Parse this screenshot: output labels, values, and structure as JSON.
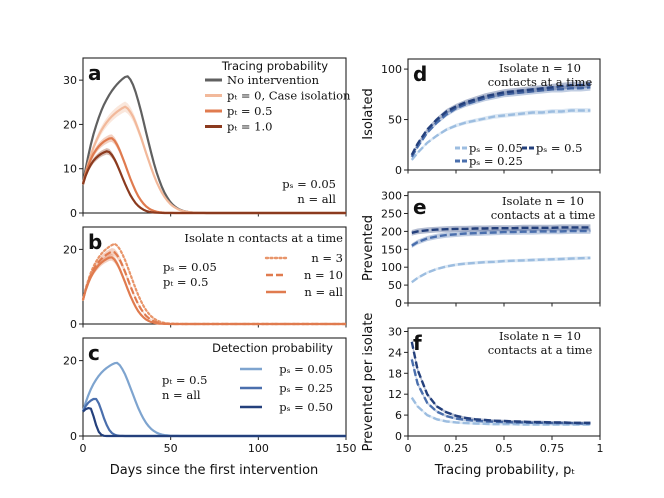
{
  "chart_data": [
    {
      "id": "a",
      "type": "line",
      "panel_label": "a",
      "xlim": [
        0,
        150
      ],
      "ylim": [
        0,
        35
      ],
      "yticks": [
        "0",
        "10",
        "20",
        "30"
      ],
      "xticks_shown": false,
      "legend_title": "Tracing probability",
      "annotation": [
        "pₛ = 0.05",
        "n = all"
      ],
      "series": [
        {
          "name": "No intervention",
          "color": "#606060",
          "style": "solid",
          "band": false,
          "peak_day": 25,
          "peak": 31,
          "y0": 6.5,
          "rise_k": 2.2,
          "decay_k": 2.2
        },
        {
          "name": "pₜ = 0, Case isolation",
          "color": "#f2b99b",
          "style": "solid",
          "band": true,
          "peak_day": 24,
          "peak": 24,
          "y0": 6.5,
          "rise_k": 2.2,
          "decay_k": 2.0
        },
        {
          "name": "pₜ = 0.5",
          "color": "#e07b4f",
          "style": "solid",
          "band": true,
          "peak_day": 16,
          "peak": 17,
          "y0": 6.5,
          "rise_k": 2.4,
          "decay_k": 1.7
        },
        {
          "name": "pₜ = 1.0",
          "color": "#8b3a1e",
          "style": "solid",
          "band": true,
          "peak_day": 14,
          "peak": 14,
          "y0": 6.5,
          "rise_k": 2.4,
          "decay_k": 1.6
        }
      ]
    },
    {
      "id": "b",
      "type": "line",
      "panel_label": "b",
      "xlim": [
        0,
        150
      ],
      "ylim": [
        0,
        26
      ],
      "yticks": [
        "0",
        "20"
      ],
      "xticks_shown": false,
      "legend_title": "Isolate n contacts at a time",
      "annotation": [
        "pₛ = 0.05",
        "pₜ = 0.5"
      ],
      "series": [
        {
          "name": "n = 3",
          "color": "#e8956a",
          "style": "dotted",
          "band": false,
          "peak_day": 18,
          "peak": 21.5,
          "y0": 6.5,
          "rise_k": 2.3,
          "decay_k": 1.8
        },
        {
          "name": "n = 10",
          "color": "#e07b4f",
          "style": "dashed",
          "band": true,
          "peak_day": 17,
          "peak": 19.5,
          "y0": 6.5,
          "rise_k": 2.3,
          "decay_k": 1.8
        },
        {
          "name": "n = all",
          "color": "#e07b4f",
          "style": "solid",
          "band": true,
          "peak_day": 16,
          "peak": 18,
          "y0": 6.5,
          "rise_k": 2.3,
          "decay_k": 1.8
        }
      ]
    },
    {
      "id": "c",
      "type": "line",
      "panel_label": "c",
      "xlim": [
        0,
        150
      ],
      "ylim": [
        0,
        26
      ],
      "yticks": [
        "0",
        "20"
      ],
      "xticks": [
        "0",
        "50",
        "100",
        "150"
      ],
      "xlabel": "Days since the first intervention",
      "legend_title": "Detection probability",
      "annotation": [
        "pₜ = 0.5",
        "n = all"
      ],
      "series": [
        {
          "name": "pₛ = 0.05",
          "color": "#7ea4cf",
          "style": "solid",
          "band": false,
          "peak_day": 19,
          "peak": 19.5,
          "y0": 6.5,
          "rise_k": 2.2,
          "decay_k": 2.0
        },
        {
          "name": "pₛ = 0.25",
          "color": "#4a6fad",
          "style": "solid",
          "band": false,
          "peak_day": 7,
          "peak": 10,
          "y0": 6.5,
          "rise_k": 2.0,
          "decay_k": 1.6
        },
        {
          "name": "pₛ = 0.50",
          "color": "#24407c",
          "style": "solid",
          "band": false,
          "peak_day": 4,
          "peak": 7.5,
          "y0": 6.5,
          "rise_k": 2.0,
          "decay_k": 1.5
        }
      ]
    },
    {
      "id": "d",
      "type": "line",
      "panel_label": "d",
      "ylabel": "Isolated",
      "xlim": [
        0,
        1
      ],
      "ylim": [
        0,
        110
      ],
      "yticks": [
        "0",
        "50",
        "100"
      ],
      "xticks_shown": false,
      "title": [
        "Isolate n = 10",
        "contacts at a time"
      ],
      "legend": [
        "pₛ = 0.05",
        "pₛ = 0.25",
        "pₛ = 0.5"
      ],
      "x": [
        0.02,
        0.05,
        0.1,
        0.15,
        0.2,
        0.25,
        0.3,
        0.35,
        0.4,
        0.45,
        0.5,
        0.55,
        0.6,
        0.65,
        0.7,
        0.75,
        0.8,
        0.85,
        0.9,
        0.95
      ],
      "series": [
        {
          "name": "pₛ = 0.05",
          "color": "#9cbde0",
          "style": "dashed",
          "values": [
            10,
            17,
            27,
            34,
            40,
            44,
            47,
            49,
            51,
            53,
            54,
            55,
            56,
            57,
            57,
            58,
            58,
            59,
            59,
            59
          ]
        },
        {
          "name": "pₛ = 0.25",
          "color": "#4a6fad",
          "style": "dashed",
          "values": [
            13,
            23,
            37,
            47,
            55,
            61,
            65,
            68,
            71,
            73,
            75,
            76,
            77,
            78,
            79,
            80,
            80,
            81,
            81,
            82
          ]
        },
        {
          "name": "pₛ = 0.5",
          "color": "#24407c",
          "style": "dashed",
          "values": [
            15,
            26,
            40,
            50,
            58,
            63,
            67,
            70,
            73,
            75,
            77,
            78,
            79,
            80,
            81,
            82,
            83,
            84,
            84,
            85
          ]
        }
      ]
    },
    {
      "id": "e",
      "type": "line",
      "panel_label": "e",
      "ylabel": "Prevented",
      "xlim": [
        0,
        1
      ],
      "ylim": [
        0,
        310
      ],
      "yticks": [
        "0",
        "50",
        "100",
        "150",
        "200",
        "250",
        "300"
      ],
      "xticks_shown": false,
      "title": [
        "Isolate n = 10",
        "contacts at a time"
      ],
      "x": [
        0.02,
        0.05,
        0.1,
        0.15,
        0.2,
        0.25,
        0.3,
        0.35,
        0.4,
        0.45,
        0.5,
        0.55,
        0.6,
        0.65,
        0.7,
        0.75,
        0.8,
        0.85,
        0.9,
        0.95
      ],
      "series": [
        {
          "name": "pₛ = 0.05",
          "color": "#9cbde0",
          "style": "dashed",
          "values": [
            58,
            70,
            85,
            95,
            102,
            107,
            110,
            112,
            114,
            115,
            117,
            118,
            119,
            120,
            121,
            122,
            123,
            124,
            125,
            126
          ]
        },
        {
          "name": "pₛ = 0.25",
          "color": "#4a6fad",
          "style": "dashed",
          "values": [
            160,
            170,
            180,
            186,
            190,
            192,
            194,
            195,
            196,
            197,
            198,
            198,
            199,
            199,
            200,
            200,
            200,
            201,
            201,
            201
          ]
        },
        {
          "name": "pₛ = 0.5",
          "color": "#24407c",
          "style": "dashed",
          "values": [
            196,
            200,
            203,
            205,
            206,
            207,
            207,
            208,
            208,
            209,
            209,
            209,
            210,
            210,
            210,
            210,
            211,
            211,
            211,
            211
          ]
        }
      ]
    },
    {
      "id": "f",
      "type": "line",
      "panel_label": "f",
      "ylabel": "Prevented per isolate",
      "xlabel": "Tracing probability, pₜ",
      "xlim": [
        0,
        1
      ],
      "ylim": [
        0,
        31
      ],
      "yticks": [
        "0",
        "6",
        "12",
        "18",
        "24",
        "30"
      ],
      "xticks": [
        "0",
        "0.25",
        "0.5",
        "0.75",
        "1"
      ],
      "title": [
        "Isolate n = 10",
        "contacts at a time"
      ],
      "x": [
        0.02,
        0.05,
        0.1,
        0.15,
        0.2,
        0.25,
        0.3,
        0.35,
        0.4,
        0.45,
        0.5,
        0.55,
        0.6,
        0.65,
        0.7,
        0.75,
        0.8,
        0.85,
        0.9,
        0.95
      ],
      "series": [
        {
          "name": "pₛ = 0.05",
          "color": "#9cbde0",
          "style": "dashed",
          "values": [
            11,
            8.5,
            6,
            4.8,
            4.2,
            3.9,
            3.7,
            3.6,
            3.5,
            3.4,
            3.4,
            3.4,
            3.3,
            3.3,
            3.3,
            3.3,
            3.3,
            3.3,
            3.3,
            3.3
          ]
        },
        {
          "name": "pₛ = 0.25",
          "color": "#4a6fad",
          "style": "dashed",
          "values": [
            22,
            15,
            9.5,
            7,
            5.7,
            5,
            4.6,
            4.4,
            4.2,
            4.1,
            4.0,
            3.9,
            3.9,
            3.8,
            3.8,
            3.7,
            3.7,
            3.7,
            3.6,
            3.6
          ]
        },
        {
          "name": "pₛ = 0.5",
          "color": "#24407c",
          "style": "dashed",
          "values": [
            27,
            19,
            12,
            8.5,
            6.8,
            5.8,
            5.2,
            4.8,
            4.6,
            4.4,
            4.3,
            4.2,
            4.1,
            4.0,
            4.0,
            3.9,
            3.9,
            3.8,
            3.8,
            3.8
          ]
        }
      ]
    }
  ]
}
